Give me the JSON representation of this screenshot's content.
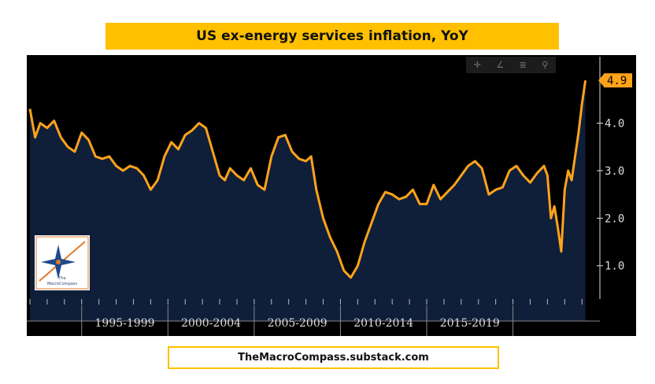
{
  "header": {
    "title": "US ex-energy services inflation, YoY"
  },
  "footer": {
    "source": "TheMacroCompass.substack.com"
  },
  "logo": {
    "line1": "The",
    "line2": "MacroCompass"
  },
  "toolbar": {
    "icons": [
      "crosshair-icon",
      "draw-icon",
      "legend-icon",
      "zoom-icon"
    ],
    "glyphs": [
      "✛",
      "∠",
      "≣",
      "⚲"
    ]
  },
  "colors": {
    "line": "#ffa31a",
    "area": "#0f1f3a",
    "background": "#000000",
    "banner": "#ffc000",
    "axis_text": "#dddddd"
  },
  "chart_data": {
    "type": "area",
    "title": "US ex-energy services inflation, YoY",
    "xlabel": "",
    "ylabel": "",
    "xlim": [
      1990,
      2022.4
    ],
    "ylim": [
      0.3,
      5.3
    ],
    "y_ticks": [
      1.0,
      2.0,
      3.0,
      4.0
    ],
    "y_tick_labels": [
      "1.0",
      "2.0",
      "3.0",
      "4.0"
    ],
    "x_categories": [
      "1995-1999",
      "2000-2004",
      "2005-2009",
      "2010-2014",
      "2015-2019"
    ],
    "x_category_ranges": [
      [
        1993,
        1998
      ],
      [
        1998,
        2003
      ],
      [
        2003,
        2008
      ],
      [
        2008,
        2013
      ],
      [
        2013,
        2018
      ]
    ],
    "last_value": 4.9,
    "last_value_label": "4.9",
    "series": [
      {
        "name": "US ex-energy services inflation YoY",
        "x": [
          1990.0,
          1990.3,
          1990.6,
          1991.0,
          1991.4,
          1991.8,
          1992.2,
          1992.6,
          1993.0,
          1993.4,
          1993.8,
          1994.2,
          1994.6,
          1995.0,
          1995.4,
          1995.8,
          1996.2,
          1996.6,
          1997.0,
          1997.4,
          1997.8,
          1998.2,
          1998.6,
          1999.0,
          1999.4,
          1999.8,
          2000.2,
          2000.6,
          2001.0,
          2001.3,
          2001.6,
          2002.0,
          2002.4,
          2002.8,
          2003.2,
          2003.6,
          2004.0,
          2004.4,
          2004.8,
          2005.2,
          2005.6,
          2006.0,
          2006.3,
          2006.6,
          2007.0,
          2007.4,
          2007.8,
          2008.2,
          2008.6,
          2009.0,
          2009.4,
          2009.8,
          2010.2,
          2010.6,
          2011.0,
          2011.4,
          2011.8,
          2012.2,
          2012.6,
          2013.0,
          2013.4,
          2013.8,
          2014.2,
          2014.6,
          2015.0,
          2015.4,
          2015.8,
          2016.2,
          2016.6,
          2017.0,
          2017.4,
          2017.8,
          2018.2,
          2018.6,
          2019.0,
          2019.4,
          2019.8,
          2020.0,
          2020.2,
          2020.4,
          2020.6,
          2020.8,
          2021.0,
          2021.2,
          2021.4,
          2021.6,
          2021.8,
          2022.0,
          2022.2
        ],
        "values": [
          4.3,
          3.7,
          4.0,
          3.9,
          4.05,
          3.7,
          3.5,
          3.4,
          3.8,
          3.65,
          3.3,
          3.25,
          3.3,
          3.1,
          3.0,
          3.1,
          3.05,
          2.9,
          2.6,
          2.8,
          3.3,
          3.6,
          3.45,
          3.75,
          3.85,
          4.0,
          3.9,
          3.4,
          2.9,
          2.8,
          3.05,
          2.9,
          2.8,
          3.05,
          2.7,
          2.6,
          3.3,
          3.7,
          3.75,
          3.4,
          3.25,
          3.2,
          3.3,
          2.6,
          2.0,
          1.6,
          1.3,
          0.9,
          0.75,
          1.0,
          1.5,
          1.9,
          2.3,
          2.55,
          2.5,
          2.4,
          2.45,
          2.6,
          2.3,
          2.3,
          2.7,
          2.4,
          2.55,
          2.7,
          2.9,
          3.1,
          3.2,
          3.05,
          2.5,
          2.6,
          2.65,
          3.0,
          3.1,
          2.9,
          2.75,
          2.95,
          3.1,
          2.9,
          2.0,
          2.25,
          1.8,
          1.3,
          2.6,
          3.0,
          2.8,
          3.3,
          3.8,
          4.4,
          4.9
        ]
      }
    ]
  }
}
